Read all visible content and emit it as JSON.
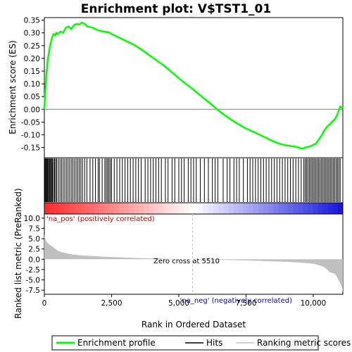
{
  "chart_data": {
    "type": "line",
    "title": "Enrichment plot: V$TST1_01",
    "xlabel": "Rank in Ordered Dataset",
    "top_panel": {
      "ylabel": "Enrichment score (ES)",
      "ylim": [
        -0.19,
        0.36
      ],
      "yticks": [
        "0.35",
        "0.30",
        "0.25",
        "0.20",
        "0.15",
        "0.10",
        "0.05",
        "0.00",
        "-0.05",
        "-0.10",
        "-0.15"
      ],
      "ytick_values": [
        0.35,
        0.3,
        0.25,
        0.2,
        0.15,
        0.1,
        0.05,
        0.0,
        -0.05,
        -0.1,
        -0.15
      ],
      "series": [
        {
          "name": "Enrichment profile",
          "color": "#00ff00",
          "x": [
            0,
            40,
            80,
            120,
            160,
            200,
            250,
            300,
            350,
            400,
            450,
            500,
            600,
            700,
            800,
            900,
            1000,
            1100,
            1200,
            1300,
            1400,
            1500,
            1600,
            1800,
            2000,
            2200,
            2400,
            2600,
            2800,
            3000,
            3300,
            3600,
            4000,
            4400,
            4800,
            5200,
            5510,
            5800,
            6200,
            6600,
            7000,
            7400,
            7600,
            7800,
            8000,
            8300,
            8600,
            8900,
            9200,
            9400,
            9500,
            9600,
            9700,
            9800,
            9900,
            10000,
            10100,
            10200,
            10300,
            10400,
            10500,
            10600,
            10700,
            10800,
            10900,
            11000,
            11100
          ],
          "y": [
            0.0,
            0.08,
            0.14,
            0.19,
            0.215,
            0.24,
            0.265,
            0.285,
            0.295,
            0.29,
            0.3,
            0.295,
            0.305,
            0.3,
            0.32,
            0.325,
            0.315,
            0.33,
            0.335,
            0.333,
            0.34,
            0.335,
            0.325,
            0.32,
            0.31,
            0.305,
            0.302,
            0.29,
            0.28,
            0.27,
            0.255,
            0.235,
            0.205,
            0.175,
            0.14,
            0.105,
            0.08,
            0.055,
            0.02,
            -0.015,
            -0.045,
            -0.07,
            -0.08,
            -0.09,
            -0.1,
            -0.115,
            -0.13,
            -0.14,
            -0.145,
            -0.148,
            -0.152,
            -0.155,
            -0.15,
            -0.148,
            -0.145,
            -0.14,
            -0.135,
            -0.12,
            -0.105,
            -0.085,
            -0.07,
            -0.06,
            -0.05,
            -0.04,
            -0.02,
            0.01,
            0.005
          ]
        }
      ]
    },
    "hits_panel": {
      "label": "Hits",
      "hit_ranks": [
        20,
        45,
        70,
        95,
        120,
        150,
        180,
        210,
        240,
        270,
        300,
        340,
        380,
        420,
        460,
        520,
        580,
        640,
        700,
        760,
        820,
        880,
        940,
        1000,
        1060,
        1120,
        1180,
        1240,
        1300,
        1360,
        1420,
        1500,
        1580,
        1700,
        1800,
        1900,
        2000,
        2050,
        2150,
        2250,
        2300,
        2350,
        2400,
        2450,
        2500,
        2600,
        2700,
        2800,
        2900,
        3000,
        3100,
        3200,
        3300,
        3400,
        3500,
        3600,
        3750,
        3850,
        3950,
        4050,
        4150,
        4250,
        4350,
        4500,
        4600,
        4750,
        4850,
        5000,
        5100,
        5200,
        5350,
        5450,
        5550,
        5650,
        5800,
        5950,
        6100,
        6250,
        6350,
        6450,
        6650,
        6800,
        6900,
        7050,
        7150,
        7250,
        7400,
        7550,
        7650,
        7750,
        7850,
        7950,
        8050,
        8150,
        8250,
        8350,
        8450,
        8550,
        8650,
        8750,
        8850,
        8950,
        9050,
        9150,
        9250,
        9350,
        9450,
        9550,
        9650,
        9700,
        9750,
        9800,
        9850,
        9900,
        9950,
        10000,
        10050,
        10100,
        10150,
        10200,
        10250,
        10300,
        10350,
        10400,
        10450,
        10500,
        10550,
        10600,
        10650,
        10700,
        10750,
        10800,
        10850,
        10900,
        10950,
        11000
      ]
    },
    "metric_panel": {
      "ylabel": "Ranked list metric (PreRanked)",
      "ylim": [
        -8.5,
        11
      ],
      "yticks": [
        "10.0",
        "7.5",
        "5.0",
        "2.5",
        "0.0",
        "-2.5",
        "-5.0",
        "-7.5"
      ],
      "ytick_values": [
        10.0,
        7.5,
        5.0,
        2.5,
        0.0,
        -2.5,
        -5.0,
        -7.5
      ],
      "series": [
        {
          "name": "Ranking metric scores",
          "color": "#c0c0c0",
          "x": [
            0,
            20,
            60,
            120,
            200,
            300,
            400,
            500,
            600,
            800,
            1000,
            1300,
            1600,
            2000,
            2500,
            3000,
            3500,
            4000,
            4500,
            5000,
            5510,
            6000,
            6500,
            7000,
            7500,
            8000,
            8500,
            9000,
            9500,
            9800,
            10000,
            10200,
            10400,
            10500,
            10600,
            10700,
            10800,
            10900,
            10950,
            11000,
            11050,
            11100
          ],
          "y": [
            6.2,
            5.4,
            4.6,
            4.0,
            3.5,
            3.1,
            2.6,
            2.1,
            1.8,
            1.5,
            1.2,
            1.0,
            0.85,
            0.7,
            0.55,
            0.42,
            0.3,
            0.2,
            0.12,
            0.05,
            0.0,
            -0.05,
            -0.12,
            -0.2,
            -0.28,
            -0.38,
            -0.5,
            -0.62,
            -0.8,
            -0.95,
            -1.1,
            -1.4,
            -1.9,
            -2.4,
            -3.1,
            -3.3,
            -3.5,
            -4.5,
            -5.2,
            -5.8,
            -6.5,
            -7.9
          ]
        }
      ],
      "zero_cross_label": "Zero cross at 5510",
      "zero_cross": 5510,
      "pos_label": "'na_pos' (positively correlated)",
      "neg_label": "'na_neg' (negatively correlated)"
    },
    "xlim": [
      0,
      11100
    ],
    "xticks": [
      "0",
      "2,500",
      "5,000",
      "7,500",
      "10,000"
    ],
    "xtick_values": [
      0,
      2500,
      5000,
      7500,
      10000
    ],
    "legend": {
      "placement": "bottom",
      "entries": [
        "Enrichment profile",
        "Hits",
        "Ranking metric scores"
      ]
    },
    "colors": {
      "profile": "#00ff00",
      "hits": "#000000",
      "metric": "#c0c0c0",
      "pos_label": "#cc0000",
      "neg_label": "#0000cc",
      "zero_line": "#c0c0c0"
    }
  }
}
